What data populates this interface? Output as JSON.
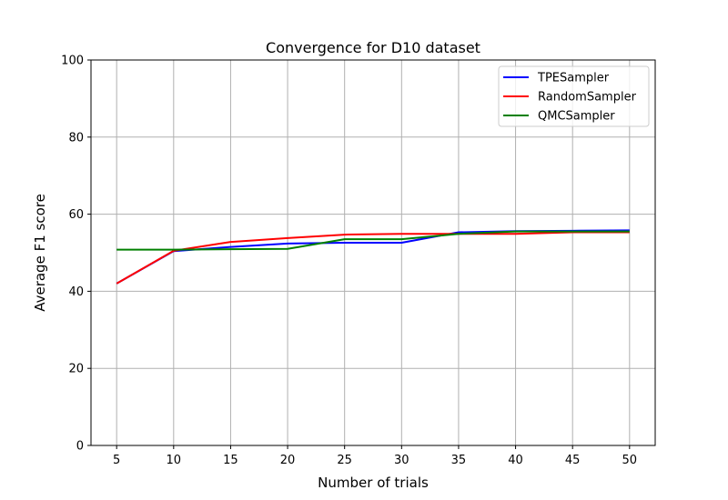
{
  "chart_data": {
    "type": "line",
    "title": "Convergence for D10 dataset",
    "xlabel": "Number of trials",
    "ylabel": "Average F1 score",
    "xlim": [
      2.75,
      52.25
    ],
    "ylim": [
      0,
      100
    ],
    "xticks": [
      5,
      10,
      15,
      20,
      25,
      30,
      35,
      40,
      45,
      50
    ],
    "yticks": [
      0,
      20,
      40,
      60,
      80,
      100
    ],
    "grid": true,
    "legend_position": "top-right",
    "x": [
      5,
      10,
      15,
      20,
      25,
      30,
      35,
      40,
      45,
      50
    ],
    "series": [
      {
        "name": "TPESampler",
        "color": "#0000ff",
        "values": [
          42.0,
          50.4,
          51.5,
          52.4,
          52.6,
          52.6,
          55.3,
          55.6,
          55.7,
          55.8
        ]
      },
      {
        "name": "RandomSampler",
        "color": "#ff0000",
        "values": [
          42.0,
          50.5,
          52.8,
          53.8,
          54.7,
          54.9,
          54.9,
          54.9,
          55.3,
          55.3
        ]
      },
      {
        "name": "QMCSampler",
        "color": "#008000",
        "values": [
          50.8,
          50.8,
          50.9,
          51.0,
          53.5,
          53.5,
          54.9,
          55.5,
          55.5,
          55.5
        ]
      }
    ]
  }
}
